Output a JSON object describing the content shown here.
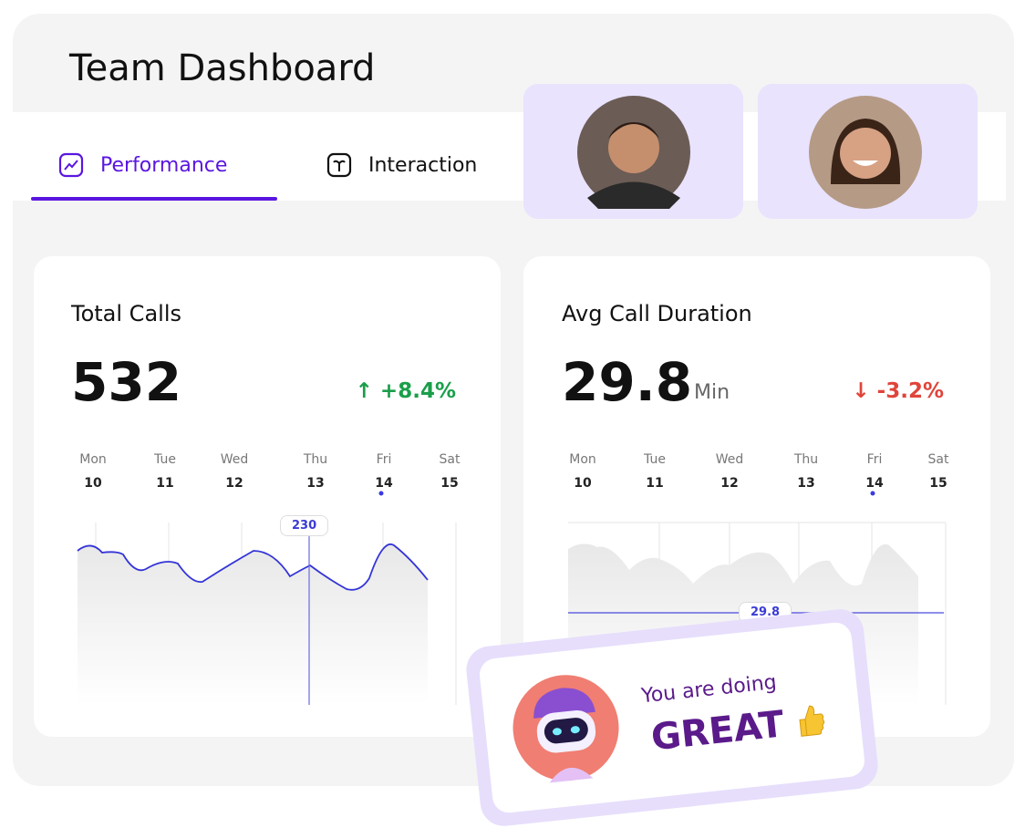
{
  "header": {
    "title": "Team Dashboard"
  },
  "tabs": [
    {
      "label": "Performance",
      "active": true
    },
    {
      "label": "Interaction",
      "active": false
    }
  ],
  "cards": [
    {
      "title": "Total Calls",
      "value": "532",
      "change": "↑ +8.4%",
      "days": [
        {
          "name": "Mon",
          "date": "10"
        },
        {
          "name": "Tue",
          "date": "11"
        },
        {
          "name": "Wed",
          "date": "12"
        },
        {
          "name": "Thu",
          "date": "13"
        },
        {
          "name": "Fri",
          "date": "14"
        },
        {
          "name": "Sat",
          "date": "15"
        }
      ],
      "marker": "230"
    },
    {
      "title": "Avg Call Duration",
      "value": "29.8",
      "unit": "Min",
      "change": "↓ -3.2%",
      "days": [
        {
          "name": "Mon",
          "date": "10"
        },
        {
          "name": "Tue",
          "date": "11"
        },
        {
          "name": "Wed",
          "date": "12"
        },
        {
          "name": "Thu",
          "date": "13"
        },
        {
          "name": "Fri",
          "date": "14"
        },
        {
          "name": "Sat",
          "date": "15"
        }
      ],
      "marker": "29.8"
    }
  ],
  "badge": {
    "line1": "You are doing",
    "line2": "GREAT"
  }
}
